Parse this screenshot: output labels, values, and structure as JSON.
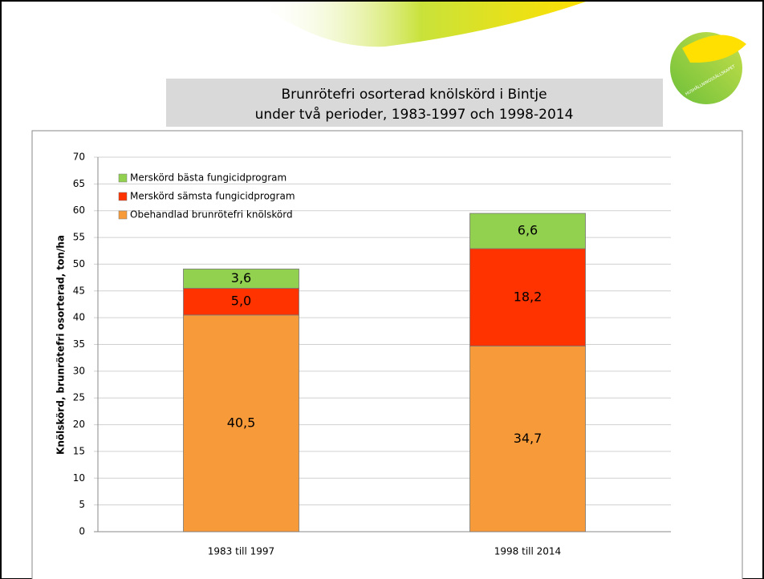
{
  "chart_data": {
    "type": "stacked_bar",
    "title": [
      "Brunrötefri osorterad knölskörd i Bintje",
      "under två perioder, 1983-1997 och 1998-2014"
    ],
    "y_label": "Knölskörd, brunrötefri osorterad, ton/ha",
    "logo_text": "HUSHÅLLNINGSSÄLLSKAPET",
    "categories": [
      "1983 till 1997",
      "1998 till 2014"
    ],
    "series": [
      {
        "name": "Obehandlad brunrötefri knölskörd",
        "color": "#f79a3a",
        "values": [
          40.5,
          34.7
        ],
        "value_labels": [
          "40,5",
          "34,7"
        ]
      },
      {
        "name": "Merskörd sämsta fungicidprogram",
        "color": "#ff3300",
        "values": [
          5.0,
          18.2
        ],
        "value_labels": [
          "5,0",
          "18,2"
        ]
      },
      {
        "name": "Merskörd bästa fungicidprogram",
        "color": "#92d050",
        "values": [
          3.6,
          6.6
        ],
        "value_labels": [
          "3,6",
          "6,6"
        ]
      }
    ],
    "ylim": [
      0,
      70
    ],
    "yticks": [
      0,
      5,
      10,
      15,
      20,
      25,
      30,
      35,
      40,
      45,
      50,
      55,
      60,
      65,
      70
    ],
    "grid": true,
    "legend": "top-left"
  }
}
